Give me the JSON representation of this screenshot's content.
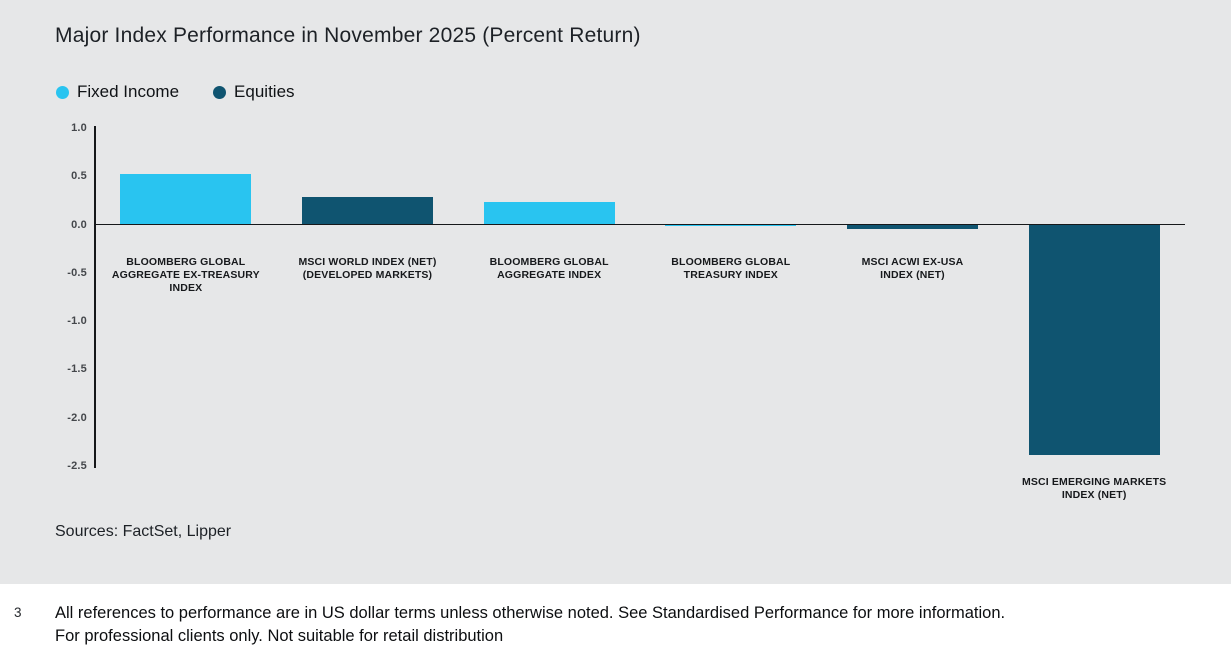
{
  "chart": {
    "title": "Major Index Performance in November 2025 (Percent Return)",
    "sources": "Sources: FactSet, Lipper"
  },
  "chart_data": {
    "type": "bar",
    "title": "Major Index Performance in November 2025 (Percent Return)",
    "categories": [
      "BLOOMBERG GLOBAL AGGREGATE EX-TREASURY INDEX",
      "MSCI WORLD INDEX (NET) (DEVELOPED MARKETS)",
      "BLOOMBERG GLOBAL AGGREGATE INDEX",
      "BLOOMBERG GLOBAL TREASURY INDEX",
      "MSCI ACWI EX-USA INDEX (NET)",
      "MSCI EMERGING MARKETS INDEX (NET)"
    ],
    "category_label_lines": [
      [
        "BLOOMBERG GLOBAL",
        "AGGREGATE EX-TREASURY",
        "INDEX"
      ],
      [
        "MSCI WORLD INDEX (NET)",
        "(DEVELOPED MARKETS)"
      ],
      [
        "BLOOMBERG GLOBAL",
        "AGGREGATE INDEX"
      ],
      [
        "BLOOMBERG GLOBAL",
        "TREASURY INDEX"
      ],
      [
        "MSCI ACWI EX-USA",
        "INDEX (NET)"
      ],
      [
        "MSCI EMERGING MARKETS",
        "INDEX (NET)"
      ]
    ],
    "values": [
      0.52,
      0.28,
      0.23,
      -0.02,
      -0.05,
      -2.39
    ],
    "bar_series": [
      "Fixed Income",
      "Equities",
      "Fixed Income",
      "Fixed Income",
      "Equities",
      "Equities"
    ],
    "legend": [
      {
        "name": "Fixed Income",
        "color": "#29c4f0"
      },
      {
        "name": "Equities",
        "color": "#0f5470"
      }
    ],
    "legend_position": "top-left",
    "grid": false,
    "ylabel": "",
    "xlabel": "",
    "ylim": [
      -2.5,
      1.0
    ],
    "ytick_labels": [
      "1.0",
      "0.5",
      "0.0",
      "-0.5",
      "-1.0",
      "-1.5",
      "-2.0",
      "-2.5"
    ],
    "ytick_values": [
      1.0,
      0.5,
      0.0,
      -0.5,
      -1.0,
      -1.5,
      -2.0,
      -2.5
    ]
  },
  "footer": {
    "page_number": "3",
    "line1": "All references to performance are in US dollar terms unless otherwise noted. See Standardised Performance for more information.",
    "line2": "For professional clients only. Not suitable for retail distribution"
  }
}
